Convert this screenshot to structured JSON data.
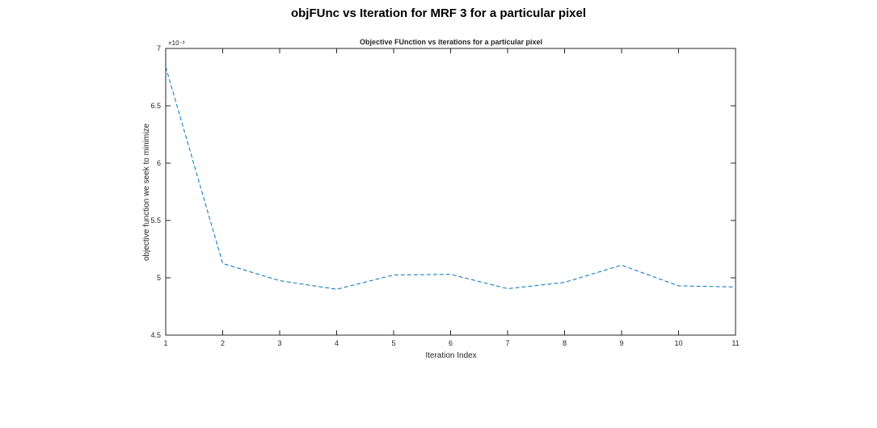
{
  "figure": {
    "suptitle": "objFUnc vs Iteration for MRF 3 for a particular pixel"
  },
  "chart_data": {
    "type": "line",
    "title": "Objective FUnction vs iterations for a particular pixel",
    "xlabel": "Iteration Index",
    "ylabel": "objective function we seek to minimize",
    "y_exponent_label": "×10⁻³",
    "x": [
      1,
      2,
      3,
      4,
      5,
      6,
      7,
      8,
      9,
      10,
      11
    ],
    "series": [
      {
        "values": [
          0.00684,
          0.005125,
          0.004975,
          0.0049,
          0.005025,
          0.00503,
          0.004905,
          0.00496,
          0.00511,
          0.00493,
          0.00492
        ]
      }
    ],
    "xlim": [
      1,
      11
    ],
    "ylim": [
      0.0045,
      0.007
    ],
    "xticks": [
      "1",
      "2",
      "3",
      "4",
      "5",
      "6",
      "7",
      "8",
      "9",
      "10",
      "11"
    ],
    "yticks": [
      "4.5",
      "5",
      "5.5",
      "6",
      "6.5",
      "7"
    ],
    "line_color": "#0072BD",
    "line_style": "dashed",
    "grid": false,
    "legend": false
  }
}
